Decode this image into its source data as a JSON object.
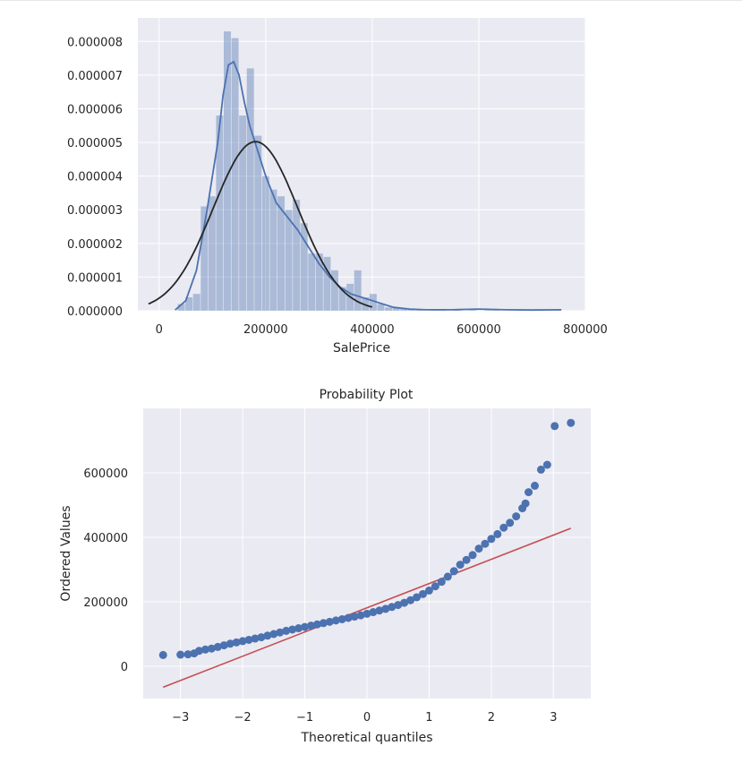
{
  "chart_data": [
    {
      "type": "histogram",
      "title": "",
      "xlabel": "SalePrice",
      "ylabel": "",
      "xlim": [
        -40000,
        800000
      ],
      "ylim": [
        0,
        8.7e-06
      ],
      "x_ticks": [
        {
          "value": 0,
          "label": "0"
        },
        {
          "value": 200000,
          "label": "200000"
        },
        {
          "value": 400000,
          "label": "400000"
        },
        {
          "value": 600000,
          "label": "600000"
        },
        {
          "value": 800000,
          "label": "800000"
        }
      ],
      "y_ticks": [
        {
          "value": 0,
          "label": "0.000000"
        },
        {
          "value": 1e-06,
          "label": "0.000001"
        },
        {
          "value": 2e-06,
          "label": "0.000002"
        },
        {
          "value": 3e-06,
          "label": "0.000003"
        },
        {
          "value": 4e-06,
          "label": "0.000004"
        },
        {
          "value": 5e-06,
          "label": "0.000005"
        },
        {
          "value": 6e-06,
          "label": "0.000006"
        },
        {
          "value": 7e-06,
          "label": "0.000007"
        },
        {
          "value": 8e-06,
          "label": "0.000008"
        }
      ],
      "grid": true,
      "bin_edges": [
        34900,
        49300,
        63700,
        78100,
        92500,
        106900,
        121300,
        135700,
        150100,
        164500,
        178900,
        193300,
        207700,
        222100,
        236500,
        250900,
        265300,
        279700,
        294100,
        308500,
        322900,
        337300,
        351700,
        366100,
        380500,
        394900,
        409300,
        423700,
        438100,
        452500,
        466900,
        481300,
        495700,
        510100,
        524500,
        538900,
        553300,
        567700,
        582100,
        596500,
        610900,
        625300,
        639700,
        654100,
        668500,
        682900,
        697300,
        711700,
        726100,
        740500,
        755000
      ],
      "density": [
        2e-07,
        4e-07,
        5e-07,
        3.1e-06,
        3.4e-06,
        5.8e-06,
        8.3e-06,
        8.1e-06,
        5.8e-06,
        7.2e-06,
        5.2e-06,
        4e-06,
        3.6e-06,
        3.4e-06,
        3e-06,
        3.3e-06,
        2.6e-06,
        1.7e-06,
        1.7e-06,
        1.6e-06,
        1.2e-06,
        7e-07,
        8e-07,
        1.2e-06,
        4e-07,
        5e-07,
        2e-07,
        1e-07,
        1e-07,
        5e-08,
        4e-08,
        3e-08,
        0,
        2e-08,
        2e-08,
        0,
        2e-08,
        0,
        2e-08,
        0,
        2e-08,
        2e-08,
        0,
        0,
        0,
        0,
        0,
        0,
        0,
        2e-08
      ],
      "series": [
        {
          "name": "",
          "kind": "kde",
          "color": "#4c72b0",
          "x": [
            30000,
            50000,
            70000,
            90000,
            100000,
            110000,
            120000,
            130000,
            140000,
            150000,
            160000,
            170000,
            180000,
            190000,
            200000,
            210000,
            220000,
            240000,
            260000,
            280000,
            300000,
            320000,
            340000,
            360000,
            380000,
            400000,
            420000,
            440000,
            470000,
            500000,
            550000,
            600000,
            650000,
            700000,
            755000
          ],
          "y": [
            2e-08,
            3e-07,
            1.2e-06,
            3e-06,
            4e-06,
            5e-06,
            6.4e-06,
            7.3e-06,
            7.4e-06,
            7e-06,
            6.2e-06,
            5.5e-06,
            5e-06,
            4.5e-06,
            4e-06,
            3.6e-06,
            3.2e-06,
            2.8e-06,
            2.4e-06,
            1.9e-06,
            1.4e-06,
            1e-06,
            7e-07,
            5e-07,
            4e-07,
            3e-07,
            2e-07,
            1e-07,
            5e-08,
            3e-08,
            3e-08,
            5e-08,
            3e-08,
            2e-08,
            3e-08
          ]
        },
        {
          "name": "",
          "kind": "normal_fit",
          "color": "#262626",
          "mean": 180921,
          "std": 79415
        }
      ]
    },
    {
      "type": "scatter",
      "title": "Probability Plot",
      "xlabel": "Theoretical quantiles",
      "ylabel": "Ordered Values",
      "xlim": [
        -3.6,
        3.6
      ],
      "ylim": [
        -100000,
        800000
      ],
      "x_ticks": [
        {
          "value": -3,
          "label": "−3"
        },
        {
          "value": -2,
          "label": "−2"
        },
        {
          "value": -1,
          "label": "−1"
        },
        {
          "value": 0,
          "label": "0"
        },
        {
          "value": 1,
          "label": "1"
        },
        {
          "value": 2,
          "label": "2"
        },
        {
          "value": 3,
          "label": "3"
        }
      ],
      "y_ticks": [
        {
          "value": 0,
          "label": "0"
        },
        {
          "value": 200000,
          "label": "200000"
        },
        {
          "value": 400000,
          "label": "400000"
        },
        {
          "value": 600000,
          "label": "600000"
        }
      ],
      "grid": true,
      "series": [
        {
          "name": "",
          "kind": "points",
          "color": "#4c72b0",
          "x": [
            -3.28,
            -3.0,
            -2.88,
            -2.78,
            -2.7,
            -2.6,
            -2.5,
            -2.4,
            -2.3,
            -2.2,
            -2.1,
            -2.0,
            -1.9,
            -1.8,
            -1.7,
            -1.6,
            -1.5,
            -1.4,
            -1.3,
            -1.2,
            -1.1,
            -1.0,
            -0.9,
            -0.8,
            -0.7,
            -0.6,
            -0.5,
            -0.4,
            -0.3,
            -0.2,
            -0.1,
            0.0,
            0.1,
            0.2,
            0.3,
            0.4,
            0.5,
            0.6,
            0.7,
            0.8,
            0.9,
            1.0,
            1.1,
            1.2,
            1.3,
            1.4,
            1.5,
            1.6,
            1.7,
            1.8,
            1.9,
            2.0,
            2.1,
            2.2,
            2.3,
            2.4,
            2.5,
            2.55,
            2.6,
            2.7,
            2.8,
            2.9,
            3.02,
            3.28
          ],
          "y": [
            35000,
            36000,
            37000,
            40000,
            48000,
            52000,
            55000,
            60000,
            65000,
            70000,
            74000,
            78000,
            82000,
            86000,
            90000,
            95000,
            100000,
            105000,
            110000,
            114000,
            118000,
            122000,
            126000,
            130000,
            134000,
            138000,
            142000,
            146000,
            150000,
            154000,
            158000,
            163000,
            168000,
            173000,
            178000,
            184000,
            190000,
            197000,
            205000,
            214000,
            224000,
            235000,
            248000,
            262000,
            278000,
            295000,
            315000,
            330000,
            345000,
            365000,
            380000,
            395000,
            410000,
            430000,
            445000,
            465000,
            490000,
            505000,
            540000,
            560000,
            610000,
            625000,
            745000,
            755000
          ]
        },
        {
          "name": "",
          "kind": "fit_line",
          "color": "#c44e52",
          "x": [
            -3.28,
            3.28
          ],
          "y": [
            -65000,
            428000
          ]
        }
      ]
    }
  ]
}
